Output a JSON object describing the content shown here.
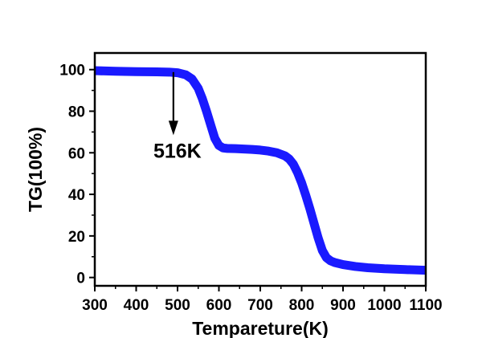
{
  "chart_data": {
    "type": "line",
    "title": "",
    "xlabel": "Tempareture(K)",
    "ylabel": "TG(100%)",
    "xlim": [
      300,
      1100
    ],
    "ylim": [
      -4,
      108
    ],
    "x_ticks": [
      300,
      400,
      500,
      600,
      700,
      800,
      900,
      1000,
      1100
    ],
    "y_ticks": [
      0,
      20,
      40,
      60,
      80,
      100
    ],
    "grid": false,
    "legend": "none",
    "series": [
      {
        "color": "#1a1aff",
        "x": [
          300,
          350,
          400,
          450,
          480,
          500,
          520,
          535,
          550,
          560,
          570,
          580,
          590,
          600,
          610,
          620,
          640,
          660,
          680,
          700,
          720,
          740,
          760,
          770,
          780,
          790,
          800,
          810,
          820,
          830,
          840,
          850,
          860,
          870,
          880,
          900,
          930,
          960,
          1000,
          1050,
          1100
        ],
        "y": [
          99.5,
          99.2,
          99.0,
          98.9,
          98.8,
          98.5,
          97.5,
          95.5,
          91.0,
          86.0,
          80.0,
          73.5,
          67.0,
          63.5,
          62.3,
          62.1,
          62.0,
          61.8,
          61.6,
          61.3,
          60.8,
          60.0,
          58.5,
          57.0,
          54.5,
          50.5,
          45.5,
          39.5,
          33.0,
          26.0,
          19.0,
          13.0,
          9.5,
          8.0,
          7.2,
          6.2,
          5.3,
          4.7,
          4.2,
          3.8,
          3.5
        ]
      }
    ],
    "annotations": [
      {
        "text": "516K",
        "arrow_x": 490,
        "arrow_y_from": 98.8,
        "arrow_y_to": 70
      }
    ]
  }
}
